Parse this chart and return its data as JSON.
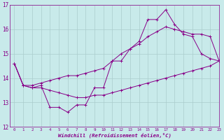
{
  "xlabel": "Windchill (Refroidissement éolien,°C)",
  "background_color": "#c8eaea",
  "grid_color": "#aacccc",
  "line_color": "#880088",
  "xlim": [
    -0.5,
    23
  ],
  "ylim": [
    12,
    17
  ],
  "yticks": [
    12,
    13,
    14,
    15,
    16,
    17
  ],
  "xticks": [
    0,
    1,
    2,
    3,
    4,
    5,
    6,
    7,
    8,
    9,
    10,
    11,
    12,
    13,
    14,
    15,
    16,
    17,
    18,
    19,
    20,
    21,
    22,
    23
  ],
  "hours": [
    0,
    1,
    2,
    3,
    4,
    5,
    6,
    7,
    8,
    9,
    10,
    11,
    12,
    13,
    14,
    15,
    16,
    17,
    18,
    19,
    20,
    21,
    22,
    23
  ],
  "temp": [
    14.6,
    13.7,
    13.6,
    13.7,
    12.8,
    12.8,
    12.6,
    12.9,
    12.9,
    13.6,
    13.6,
    14.7,
    14.7,
    15.2,
    15.5,
    16.4,
    16.4,
    16.8,
    16.2,
    15.8,
    15.7,
    15.0,
    14.8,
    14.7
  ],
  "low_line": [
    14.6,
    13.7,
    13.6,
    13.6,
    13.5,
    13.4,
    13.3,
    13.2,
    13.2,
    13.3,
    13.3,
    13.4,
    13.5,
    13.6,
    13.7,
    13.8,
    13.9,
    14.0,
    14.1,
    14.2,
    14.3,
    14.4,
    14.5,
    14.7
  ],
  "high_line": [
    14.6,
    13.7,
    13.7,
    13.8,
    13.9,
    14.0,
    14.1,
    14.1,
    14.2,
    14.3,
    14.4,
    14.7,
    15.0,
    15.2,
    15.4,
    15.7,
    15.9,
    16.1,
    16.0,
    15.9,
    15.8,
    15.8,
    15.7,
    14.7
  ]
}
